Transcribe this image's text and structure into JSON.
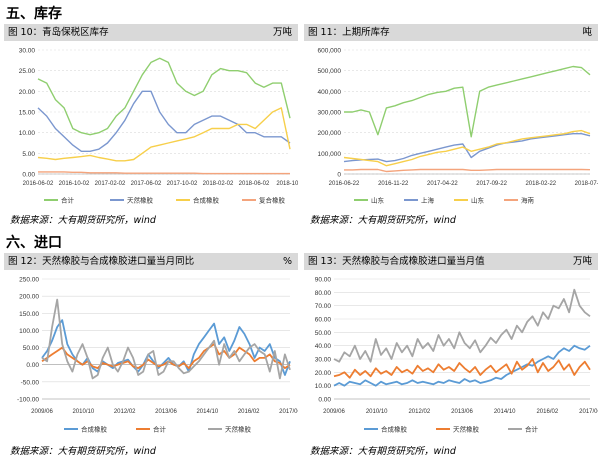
{
  "headings": {
    "inventory": "五、库存",
    "imports": "六、进口"
  },
  "source_text": "数据来源：大有期货研究所，wind",
  "chart_data": [
    {
      "id": "c10",
      "type": "line",
      "title": "图 10：青岛保税区库存",
      "unit": "万吨",
      "ylim": [
        0,
        30
      ],
      "yticks": [
        0.0,
        5.0,
        10.0,
        15.0,
        20.0,
        25.0,
        30.0
      ],
      "ytick_labels": [
        "0.00",
        "5.00",
        "10.00",
        "15.00",
        "20.00",
        "25.00",
        "30.00"
      ],
      "x_labels": [
        "2016-06-02",
        "2016-10-02",
        "2017-02-02",
        "2017-06-02",
        "2017-10-02",
        "2018-02-02",
        "2018-06-02",
        "2018-10-0"
      ],
      "series": [
        {
          "name": "合计",
          "color": "#8fce6f",
          "values": [
            23,
            22,
            18,
            16,
            11,
            10,
            9.5,
            10,
            11,
            14,
            16,
            20,
            24,
            27,
            28,
            27,
            22,
            20,
            19,
            20,
            24,
            25.5,
            25,
            25,
            24.5,
            22,
            21,
            22,
            22,
            13.5
          ]
        },
        {
          "name": "天然橡胶",
          "color": "#7b97cf",
          "values": [
            16,
            14,
            11,
            9,
            7,
            5.5,
            5.5,
            6,
            7.5,
            10,
            13,
            17,
            20,
            20,
            15,
            12,
            10,
            10,
            12,
            13,
            14,
            14,
            13,
            12,
            10,
            10,
            9,
            9,
            9,
            7.5
          ]
        },
        {
          "name": "合成橡胶",
          "color": "#f7cf4a",
          "values": [
            4,
            3.8,
            3.5,
            3.8,
            4,
            4.2,
            4.5,
            4,
            3.6,
            3.2,
            3.2,
            3.5,
            5,
            6.5,
            7,
            7.5,
            8,
            8.5,
            9,
            10,
            11,
            11,
            11,
            12,
            12,
            11,
            13,
            15,
            16,
            6
          ]
        },
        {
          "name": "复合橡胶",
          "color": "#f4a47c",
          "values": [
            0.5,
            0.5,
            0.5,
            0.5,
            0.4,
            0.4,
            0.3,
            0.3,
            0.3,
            0.3,
            0.2,
            0.2,
            0.2,
            0.2,
            0.2,
            0.2,
            0.2,
            0.2,
            0.2,
            0.1,
            0.1,
            0.1,
            0.1,
            0.1,
            0.1,
            0.1,
            0.1,
            0.1,
            0.1,
            0.1
          ]
        }
      ],
      "legend": [
        "合计",
        "天然橡胶",
        "合成橡胶",
        "复合橡胶"
      ]
    },
    {
      "id": "c11",
      "type": "line",
      "title": "图 11：上期所库存",
      "unit": "吨",
      "ylim": [
        0,
        600000
      ],
      "yticks": [
        0,
        100000,
        200000,
        300000,
        400000,
        500000,
        600000
      ],
      "ytick_labels": [
        "0",
        "100,000",
        "200,000",
        "300,000",
        "400,000",
        "500,000",
        "600,000"
      ],
      "x_labels": [
        "2016-06-22",
        "2016-11-22",
        "2017-04-22",
        "2017-09-22",
        "2018-02-22",
        "2018-07-22"
      ],
      "series": [
        {
          "name": "山东",
          "color": "#8fce6f",
          "values": [
            300000,
            300000,
            310000,
            300000,
            190000,
            320000,
            330000,
            345000,
            355000,
            370000,
            385000,
            395000,
            400000,
            415000,
            420000,
            180000,
            400000,
            420000,
            430000,
            440000,
            450000,
            460000,
            470000,
            480000,
            490000,
            500000,
            510000,
            520000,
            515000,
            480000
          ]
        },
        {
          "name": "上海",
          "color": "#7b97cf",
          "values": [
            60000,
            65000,
            68000,
            70000,
            72000,
            60000,
            65000,
            75000,
            90000,
            100000,
            110000,
            120000,
            130000,
            140000,
            145000,
            80000,
            110000,
            125000,
            140000,
            150000,
            155000,
            160000,
            170000,
            175000,
            180000,
            185000,
            190000,
            195000,
            195000,
            185000
          ]
        },
        {
          "name": "山东",
          "color": "#f7cf4a",
          "values": [
            80000,
            75000,
            70000,
            65000,
            60000,
            40000,
            50000,
            60000,
            70000,
            85000,
            95000,
            105000,
            110000,
            120000,
            130000,
            110000,
            120000,
            130000,
            145000,
            150000,
            160000,
            170000,
            175000,
            180000,
            185000,
            190000,
            195000,
            205000,
            210000,
            195000
          ]
        },
        {
          "name": "海南",
          "color": "#f4a47c",
          "values": [
            20000,
            20000,
            22000,
            22000,
            22000,
            12000,
            15000,
            18000,
            20000,
            22000,
            22000,
            22000,
            22000,
            22000,
            22000,
            18000,
            18000,
            20000,
            22000,
            22000,
            22000,
            22000,
            22000,
            22000,
            22000,
            22000,
            22000,
            22000,
            22000,
            21000
          ]
        }
      ],
      "legend": [
        "山东",
        "上海",
        "山东",
        "海南"
      ]
    },
    {
      "id": "c12",
      "type": "line",
      "title": "图 12：天然橡胶与合成橡胶进口量当月同比",
      "unit": "%",
      "ylim": [
        -100,
        250
      ],
      "yticks": [
        -100,
        -50,
        0,
        50,
        100,
        150,
        200,
        250
      ],
      "ytick_labels": [
        "-100.00",
        "-50.00",
        "0.00",
        "50.00",
        "100.00",
        "150.00",
        "200.00",
        "250.00"
      ],
      "x_labels": [
        "2009/06",
        "2010/10",
        "2012/02",
        "2013/06",
        "2014/10",
        "2016/02",
        "2017/06"
      ],
      "series": [
        {
          "name": "合成橡胶",
          "color": "#5b9bd5",
          "values": [
            20,
            40,
            70,
            110,
            130,
            60,
            30,
            10,
            0,
            20,
            -10,
            -20,
            10,
            0,
            -10,
            5,
            10,
            15,
            -5,
            -20,
            0,
            30,
            10,
            -10,
            5,
            20,
            0,
            -5,
            10,
            -20,
            30,
            60,
            80,
            100,
            120,
            60,
            80,
            40,
            70,
            110,
            90,
            60,
            20,
            50,
            40,
            60,
            20,
            10,
            -30,
            10
          ]
        },
        {
          "name": "合计",
          "color": "#ed7d31",
          "values": [
            10,
            20,
            30,
            40,
            50,
            30,
            20,
            10,
            0,
            10,
            -5,
            -10,
            5,
            0,
            -5,
            0,
            5,
            10,
            -5,
            -10,
            0,
            15,
            5,
            -5,
            0,
            10,
            0,
            -5,
            5,
            -10,
            10,
            20,
            40,
            50,
            60,
            30,
            40,
            20,
            30,
            50,
            40,
            30,
            10,
            20,
            20,
            30,
            10,
            5,
            -10,
            0
          ]
        },
        {
          "name": "天然橡胶",
          "color": "#a5a5a5",
          "values": [
            20,
            10,
            110,
            190,
            60,
            10,
            -20,
            30,
            60,
            20,
            -40,
            -30,
            20,
            50,
            0,
            -20,
            10,
            50,
            20,
            -30,
            -20,
            30,
            40,
            -30,
            -20,
            10,
            10,
            -10,
            -25,
            -20,
            -5,
            10,
            30,
            50,
            70,
            0,
            60,
            20,
            40,
            10,
            30,
            50,
            60,
            40,
            30,
            -20,
            40,
            -40,
            30,
            -15
          ]
        }
      ],
      "legend": [
        "合成橡胶",
        "合计",
        "天然橡胶"
      ]
    },
    {
      "id": "c13",
      "type": "line",
      "title": "图 13：天然橡胶与合成橡胶进口量当月值",
      "unit": "万吨",
      "ylim": [
        0,
        90
      ],
      "yticks": [
        0,
        10,
        20,
        30,
        40,
        50,
        60,
        70,
        80,
        90
      ],
      "ytick_labels": [
        "0.00",
        "10.00",
        "20.00",
        "30.00",
        "40.00",
        "50.00",
        "60.00",
        "70.00",
        "80.00",
        "90.00"
      ],
      "x_labels": [
        "2009/06",
        "2010/10",
        "2012/02",
        "2013/06",
        "2014/10",
        "2016/02",
        "2017/06"
      ],
      "series": [
        {
          "name": "合成橡胶",
          "color": "#5b9bd5",
          "values": [
            10,
            12,
            10,
            13,
            12,
            11,
            14,
            12,
            10,
            13,
            11,
            12,
            13,
            11,
            12,
            14,
            12,
            13,
            12,
            11,
            13,
            12,
            14,
            13,
            12,
            15,
            13,
            14,
            12,
            13,
            14,
            16,
            15,
            18,
            20,
            22,
            24,
            26,
            25,
            28,
            30,
            32,
            30,
            35,
            38,
            36,
            40,
            38,
            37,
            40
          ]
        },
        {
          "name": "天然橡胶",
          "color": "#ed7d31",
          "values": [
            17,
            18,
            20,
            16,
            22,
            18,
            21,
            17,
            23,
            19,
            21,
            18,
            24,
            20,
            22,
            19,
            25,
            21,
            23,
            20,
            26,
            22,
            24,
            21,
            27,
            23,
            20,
            24,
            18,
            22,
            25,
            20,
            23,
            26,
            19,
            28,
            22,
            25,
            30,
            20,
            27,
            21,
            24,
            29,
            22,
            26,
            18,
            24,
            28,
            22
          ]
        },
        {
          "name": "合计",
          "color": "#a5a5a5",
          "values": [
            30,
            28,
            35,
            32,
            40,
            30,
            36,
            28,
            45,
            33,
            38,
            30,
            42,
            35,
            40,
            32,
            45,
            38,
            42,
            36,
            48,
            40,
            45,
            38,
            50,
            42,
            38,
            44,
            35,
            40,
            46,
            42,
            48,
            52,
            45,
            55,
            50,
            58,
            62,
            55,
            65,
            60,
            70,
            68,
            75,
            65,
            82,
            70,
            65,
            62
          ]
        }
      ],
      "legend": [
        "合成橡胶",
        "天然橡胶",
        "合计"
      ]
    }
  ]
}
